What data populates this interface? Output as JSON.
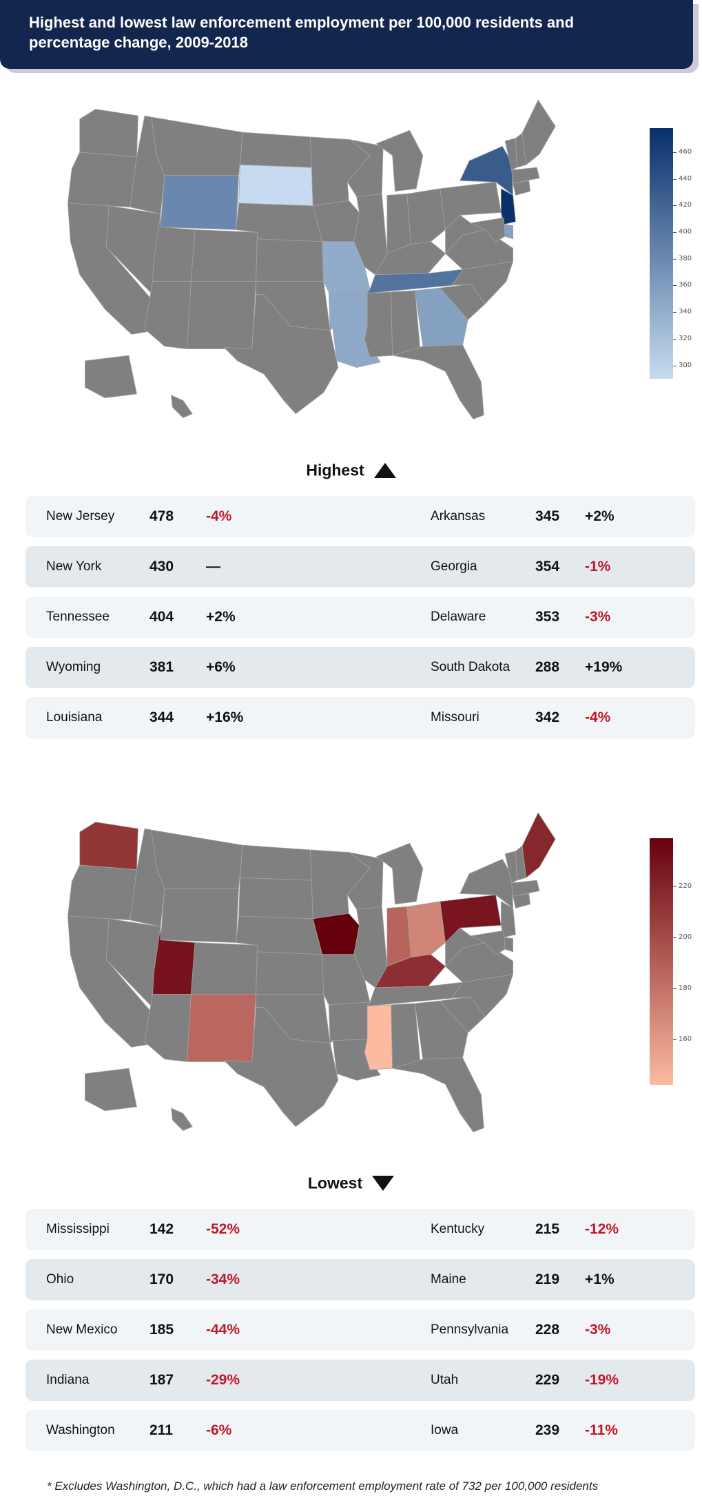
{
  "title": "Highest and lowest law enforcement employment per 100,000 residents and percentage change, 2009-2018",
  "colors": {
    "header_bg": "#13264d",
    "no_data": "#808080",
    "negative": "#c0182a"
  },
  "chart_data": [
    {
      "type": "choropleth",
      "group": "Highest",
      "colorscale": [
        "#c6dbef",
        "#08306b"
      ],
      "colorbar_range": [
        290,
        478
      ],
      "colorbar_ticks": [
        300,
        320,
        340,
        360,
        380,
        400,
        420,
        440,
        460
      ],
      "states": [
        {
          "id": "NJ",
          "value": 478
        },
        {
          "id": "NY",
          "value": 430
        },
        {
          "id": "TN",
          "value": 404
        },
        {
          "id": "WY",
          "value": 381
        },
        {
          "id": "LA",
          "value": 344
        },
        {
          "id": "AR",
          "value": 345
        },
        {
          "id": "GA",
          "value": 354
        },
        {
          "id": "DE",
          "value": 353
        },
        {
          "id": "SD",
          "value": 288
        },
        {
          "id": "MO",
          "value": 342
        }
      ]
    },
    {
      "type": "choropleth",
      "group": "Lowest",
      "colorscale": [
        "#fcbba1",
        "#67000d"
      ],
      "colorbar_range": [
        142,
        239
      ],
      "colorbar_ticks": [
        160,
        180,
        200,
        220
      ],
      "states": [
        {
          "id": "MS",
          "value": 142
        },
        {
          "id": "OH",
          "value": 170
        },
        {
          "id": "NM",
          "value": 185
        },
        {
          "id": "IN",
          "value": 187
        },
        {
          "id": "WA",
          "value": 211
        },
        {
          "id": "KY",
          "value": 215
        },
        {
          "id": "ME",
          "value": 219
        },
        {
          "id": "PA",
          "value": 228
        },
        {
          "id": "UT",
          "value": 229
        },
        {
          "id": "IA",
          "value": 239
        }
      ]
    }
  ],
  "highest": {
    "heading": "Highest",
    "rows": [
      {
        "left": {
          "state": "New Jersey",
          "rate": "478",
          "change": "-4%"
        },
        "right": {
          "state": "Arkansas",
          "rate": "345",
          "change": "+2%"
        }
      },
      {
        "left": {
          "state": "New York",
          "rate": "430",
          "change": "—"
        },
        "right": {
          "state": "Georgia",
          "rate": "354",
          "change": "-1%"
        }
      },
      {
        "left": {
          "state": "Tennessee",
          "rate": "404",
          "change": "+2%"
        },
        "right": {
          "state": "Delaware",
          "rate": "353",
          "change": "-3%"
        }
      },
      {
        "left": {
          "state": "Wyoming",
          "rate": "381",
          "change": "+6%"
        },
        "right": {
          "state": "South Dakota",
          "rate": "288",
          "change": "+19%"
        }
      },
      {
        "left": {
          "state": "Louisiana",
          "rate": "344",
          "change": "+16%"
        },
        "right": {
          "state": "Missouri",
          "rate": "342",
          "change": "-4%"
        }
      }
    ]
  },
  "lowest": {
    "heading": "Lowest",
    "rows": [
      {
        "left": {
          "state": "Mississippi",
          "rate": "142",
          "change": "-52%"
        },
        "right": {
          "state": "Kentucky",
          "rate": "215",
          "change": "-12%"
        }
      },
      {
        "left": {
          "state": "Ohio",
          "rate": "170",
          "change": "-34%"
        },
        "right": {
          "state": "Maine",
          "rate": "219",
          "change": "+1%"
        }
      },
      {
        "left": {
          "state": "New Mexico",
          "rate": "185",
          "change": "-44%"
        },
        "right": {
          "state": "Pennsylvania",
          "rate": "228",
          "change": "-3%"
        }
      },
      {
        "left": {
          "state": "Indiana",
          "rate": "187",
          "change": "-29%"
        },
        "right": {
          "state": "Utah",
          "rate": "229",
          "change": "-19%"
        }
      },
      {
        "left": {
          "state": "Washington",
          "rate": "211",
          "change": "-6%"
        },
        "right": {
          "state": "Iowa",
          "rate": "239",
          "change": "-11%"
        }
      }
    ]
  },
  "footnote": "* Excludes Washington, D.C., which had a law enforcement employment rate of 732 per 100,000 residents"
}
